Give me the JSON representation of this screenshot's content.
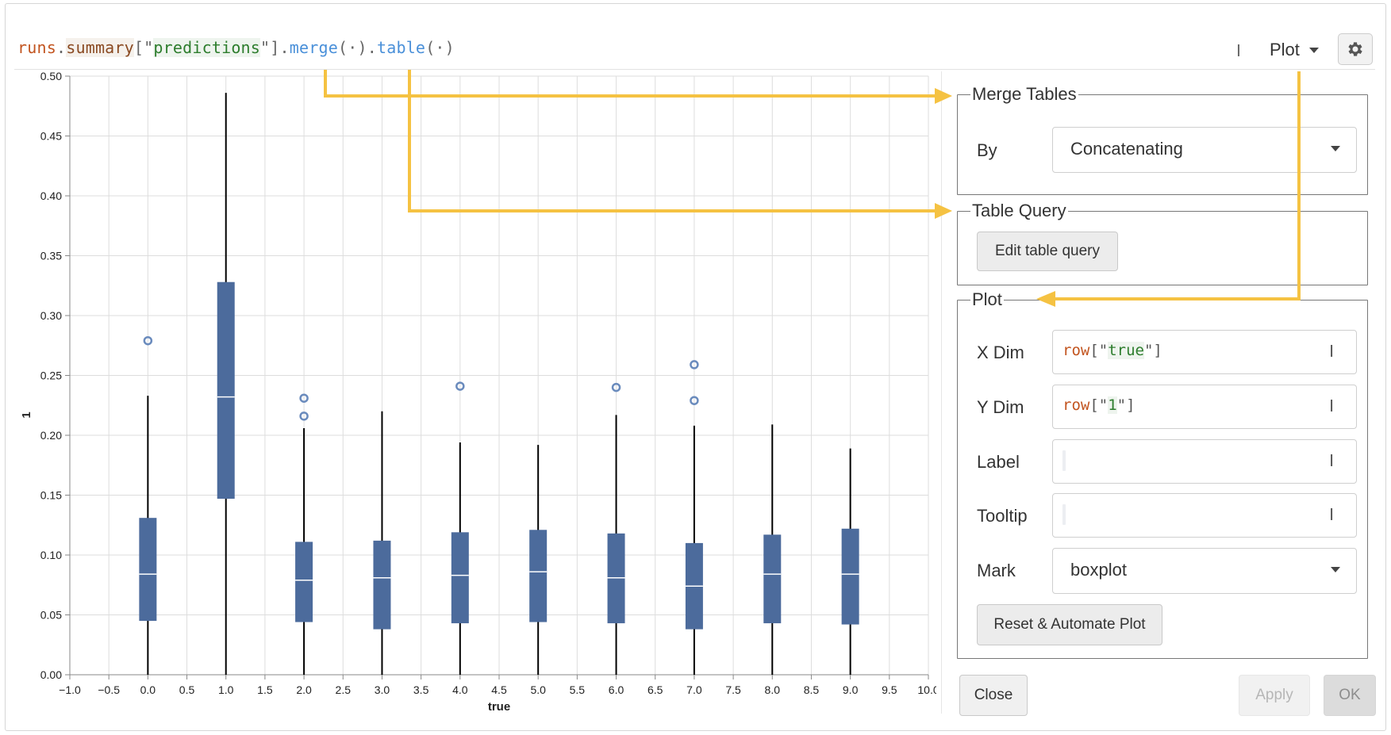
{
  "query": {
    "runs": "runs",
    "dot1": ".",
    "summary": "summary",
    "open": "[\"",
    "key": "predictions",
    "close": "\"].",
    "merge": "merge",
    "merge_args": "(·).",
    "table": "table",
    "table_args": "(·)"
  },
  "panel": {
    "type_label": "Plot"
  },
  "icons": {
    "gear": "gear-icon",
    "text_cursor": "text-cursor-icon",
    "caret": "chevron-down-icon"
  },
  "colors": {
    "box_fill": "#4c6b9c",
    "arrow": "#f5c242",
    "grid": "#dddddd"
  },
  "merge_tables": {
    "title": "Merge Tables",
    "by_label": "By",
    "by_value": "Concatenating"
  },
  "table_query": {
    "title": "Table Query",
    "button": "Edit table query"
  },
  "plot": {
    "title": "Plot",
    "x_dim_label": "X Dim",
    "x_dim": {
      "fn": "row",
      "open": "[\"",
      "key": "true",
      "close": "\"]"
    },
    "y_dim_label": "Y Dim",
    "y_dim": {
      "fn": "row",
      "open": "[\"",
      "key": "1",
      "close": "\"]"
    },
    "label_label": "Label",
    "tooltip_label": "Tooltip",
    "mark_label": "Mark",
    "mark_value": "boxplot",
    "reset_button": "Reset & Automate Plot"
  },
  "footer": {
    "close": "Close",
    "apply": "Apply",
    "ok": "OK"
  },
  "chart_data": {
    "type": "boxplot",
    "xlabel": "true",
    "ylabel": "1",
    "xlim": [
      -1.0,
      10.0
    ],
    "ylim": [
      0,
      0.5
    ],
    "x_ticks": [
      "−1.0",
      "−0.5",
      "0.0",
      "0.5",
      "1.0",
      "1.5",
      "2.0",
      "2.5",
      "3.0",
      "3.5",
      "4.0",
      "4.5",
      "5.0",
      "5.5",
      "6.0",
      "6.5",
      "7.0",
      "7.5",
      "8.0",
      "8.5",
      "9.0",
      "9.5",
      "10.0"
    ],
    "x_tick_values": [
      -1.0,
      -0.5,
      0.0,
      0.5,
      1.0,
      1.5,
      2.0,
      2.5,
      3.0,
      3.5,
      4.0,
      4.5,
      5.0,
      5.5,
      6.0,
      6.5,
      7.0,
      7.5,
      8.0,
      8.5,
      9.0,
      9.5,
      10.0
    ],
    "y_ticks": [
      "0.00",
      "0.05",
      "0.10",
      "0.15",
      "0.20",
      "0.25",
      "0.30",
      "0.35",
      "0.40",
      "0.45",
      "0.50"
    ],
    "y_tick_values": [
      0,
      0.05,
      0.1,
      0.15,
      0.2,
      0.25,
      0.3,
      0.35,
      0.4,
      0.45,
      0.5
    ],
    "grid": true,
    "boxes": [
      {
        "x": 0,
        "min": 0.0,
        "q1": 0.045,
        "median": 0.084,
        "q3": 0.131,
        "max": 0.233,
        "outliers": [
          0.279
        ]
      },
      {
        "x": 1,
        "min": 0.0,
        "q1": 0.147,
        "median": 0.232,
        "q3": 0.328,
        "max": 0.486,
        "outliers": []
      },
      {
        "x": 2,
        "min": 0.0,
        "q1": 0.044,
        "median": 0.079,
        "q3": 0.111,
        "max": 0.206,
        "outliers": [
          0.231,
          0.216
        ]
      },
      {
        "x": 3,
        "min": 0.0,
        "q1": 0.038,
        "median": 0.081,
        "q3": 0.112,
        "max": 0.22,
        "outliers": []
      },
      {
        "x": 4,
        "min": 0.0,
        "q1": 0.043,
        "median": 0.083,
        "q3": 0.119,
        "max": 0.194,
        "outliers": [
          0.241
        ]
      },
      {
        "x": 5,
        "min": 0.0,
        "q1": 0.044,
        "median": 0.086,
        "q3": 0.121,
        "max": 0.192,
        "outliers": []
      },
      {
        "x": 6,
        "min": 0.0,
        "q1": 0.043,
        "median": 0.081,
        "q3": 0.118,
        "max": 0.217,
        "outliers": [
          0.24
        ]
      },
      {
        "x": 7,
        "min": 0.0,
        "q1": 0.038,
        "median": 0.074,
        "q3": 0.11,
        "max": 0.208,
        "outliers": [
          0.259,
          0.229
        ]
      },
      {
        "x": 8,
        "min": 0.0,
        "q1": 0.043,
        "median": 0.084,
        "q3": 0.117,
        "max": 0.209,
        "outliers": []
      },
      {
        "x": 9,
        "min": 0.0,
        "q1": 0.042,
        "median": 0.084,
        "q3": 0.122,
        "max": 0.189,
        "outliers": []
      }
    ]
  }
}
